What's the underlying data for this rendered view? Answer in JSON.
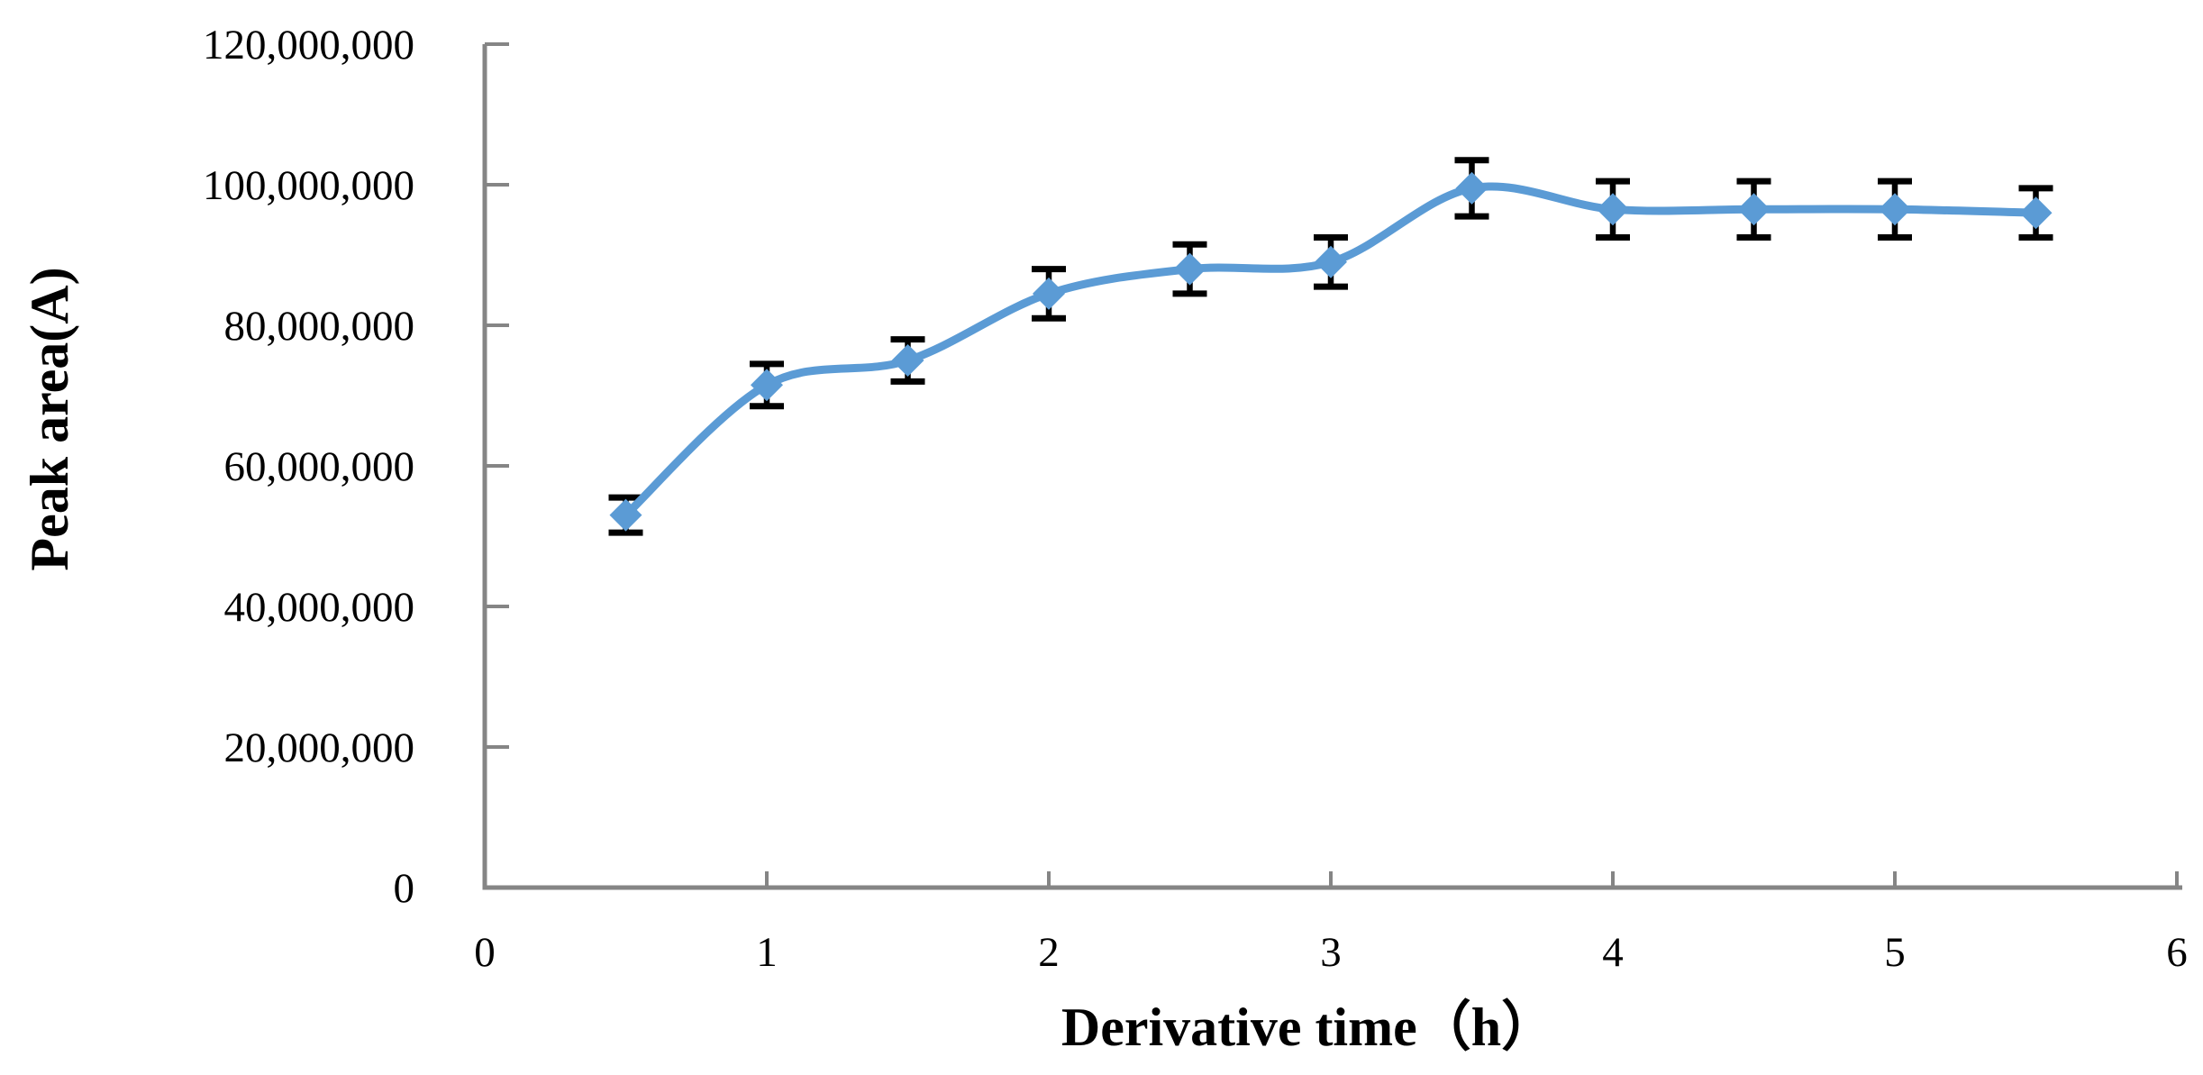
{
  "chart_data": {
    "type": "line",
    "title": "",
    "xlabel": "Derivative time（h）",
    "ylabel": "Peak area(A)",
    "x": [
      0.5,
      1,
      1.5,
      2,
      2.5,
      3,
      3.5,
      4,
      4.5,
      5,
      5.5
    ],
    "series": [
      {
        "name": "Peak area",
        "values": [
          53000000,
          71500000,
          75000000,
          84500000,
          88000000,
          89000000,
          99500000,
          96500000,
          96500000,
          96500000,
          96000000
        ],
        "error_bars": [
          2500000,
          3000000,
          3000000,
          3500000,
          3500000,
          3500000,
          4000000,
          4000000,
          4000000,
          4000000,
          3500000
        ]
      }
    ],
    "xlim": [
      0,
      6
    ],
    "ylim": [
      0,
      120000000
    ],
    "x_ticks": [
      0,
      1,
      2,
      3,
      4,
      5,
      6
    ],
    "x_tick_labels": [
      "0",
      "1",
      "2",
      "3",
      "4",
      "5",
      "6"
    ],
    "y_ticks": [
      0,
      20000000,
      40000000,
      60000000,
      80000000,
      100000000,
      120000000
    ],
    "y_tick_labels": [
      "0",
      "20,000,000",
      "40,000,000",
      "60,000,000",
      "80,000,000",
      "100,000,000",
      "120,000,000"
    ],
    "grid": false,
    "legend_position": "none",
    "line_smooth": true,
    "marker_shape": "diamond",
    "colors": {
      "line": "#5b9bd5",
      "marker": "#5b9bd5",
      "error_bar": "#000000",
      "axis": "#858585",
      "text": "#000000",
      "background": "#ffffff"
    }
  }
}
